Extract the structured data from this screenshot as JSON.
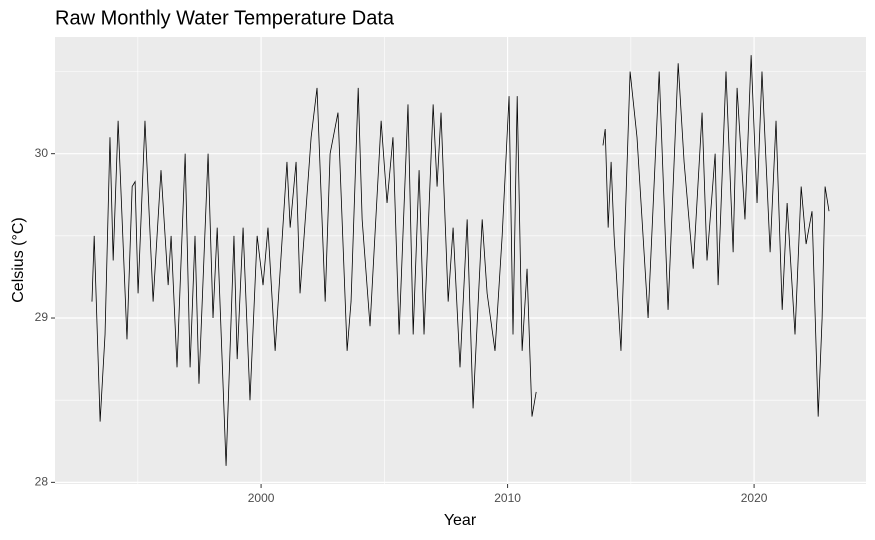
{
  "chart_data": {
    "type": "line",
    "title": "Raw Monthly Water Temperature Data",
    "x_label": "Year",
    "y_label": "Celsius (°C)",
    "x": [
      1993.14,
      1993.23,
      1993.47,
      1993.67,
      1993.87,
      1994.0,
      1994.2,
      1994.56,
      1994.77,
      1994.89,
      1995.01,
      1995.29,
      1995.62,
      1995.94,
      1996.23,
      1996.35,
      1996.59,
      1996.92,
      1997.12,
      1997.32,
      1997.48,
      1997.85,
      1998.05,
      1998.22,
      1998.58,
      1998.9,
      1999.03,
      1999.27,
      1999.55,
      1999.84,
      2000.08,
      2000.28,
      2000.57,
      2001.05,
      2001.18,
      2001.42,
      2001.58,
      2002.03,
      2002.27,
      2002.6,
      2002.8,
      2003.12,
      2003.49,
      2003.65,
      2003.94,
      2004.1,
      2004.42,
      2004.87,
      2005.11,
      2005.35,
      2005.6,
      2005.96,
      2006.17,
      2006.41,
      2006.61,
      2006.98,
      2007.14,
      2007.3,
      2007.59,
      2007.79,
      2008.07,
      2008.36,
      2008.6,
      2008.97,
      2009.17,
      2009.49,
      2009.78,
      2010.06,
      2010.22,
      2010.39,
      2010.59,
      2010.79,
      2010.99,
      2011.16,
      2012.5,
      2013.87,
      2013.96,
      2014.08,
      2014.2,
      2014.32,
      2014.6,
      2014.97,
      2015.25,
      2015.7,
      2016.15,
      2016.51,
      2016.92,
      2017.16,
      2017.53,
      2017.89,
      2018.09,
      2018.42,
      2018.54,
      2018.86,
      2019.15,
      2019.31,
      2019.63,
      2019.88,
      2020.12,
      2020.32,
      2020.65,
      2020.89,
      2021.14,
      2021.34,
      2021.66,
      2021.91,
      2022.11,
      2022.35,
      2022.6,
      2022.76,
      2022.88,
      2023.04
    ],
    "series": [
      {
        "color": "#000000",
        "values": [
          29.1,
          29.5,
          28.37,
          28.9,
          30.1,
          29.35,
          30.2,
          28.87,
          29.8,
          29.83,
          29.15,
          30.2,
          29.1,
          29.9,
          29.2,
          29.5,
          28.7,
          30.0,
          28.7,
          29.5,
          28.6,
          30.0,
          29.0,
          29.55,
          28.1,
          29.5,
          28.75,
          29.55,
          28.5,
          29.5,
          29.2,
          29.55,
          28.8,
          29.95,
          29.55,
          29.95,
          29.15,
          30.1,
          30.4,
          29.1,
          30.0,
          30.25,
          28.8,
          29.1,
          30.4,
          29.6,
          28.95,
          30.2,
          29.7,
          30.1,
          28.9,
          30.3,
          28.9,
          29.9,
          28.9,
          30.3,
          29.8,
          30.25,
          29.1,
          29.55,
          28.7,
          29.6,
          28.45,
          29.6,
          29.15,
          28.8,
          29.5,
          30.35,
          28.9,
          30.35,
          28.8,
          29.3,
          28.4,
          28.55,
          null,
          30.05,
          30.15,
          29.55,
          29.95,
          29.5,
          28.8,
          30.5,
          30.1,
          29.0,
          30.5,
          29.05,
          30.55,
          29.95,
          29.3,
          30.25,
          29.35,
          30.0,
          29.2,
          30.5,
          29.4,
          30.4,
          29.6,
          30.6,
          29.7,
          30.5,
          29.4,
          30.2,
          29.05,
          29.7,
          28.9,
          29.8,
          29.45,
          29.65,
          28.4,
          29.0,
          29.8,
          29.65
        ]
      }
    ],
    "xlim": [
      1991.64,
      2024.54
    ],
    "xticks": [
      2000,
      2010,
      2020
    ],
    "minor_xticks": [
      1995,
      2005,
      2015
    ],
    "ylim": [
      27.99,
      30.71
    ],
    "yticks": [
      28,
      29,
      30
    ],
    "minor_yticks": [
      28.5,
      29.5,
      30.5
    ],
    "grid": true
  }
}
